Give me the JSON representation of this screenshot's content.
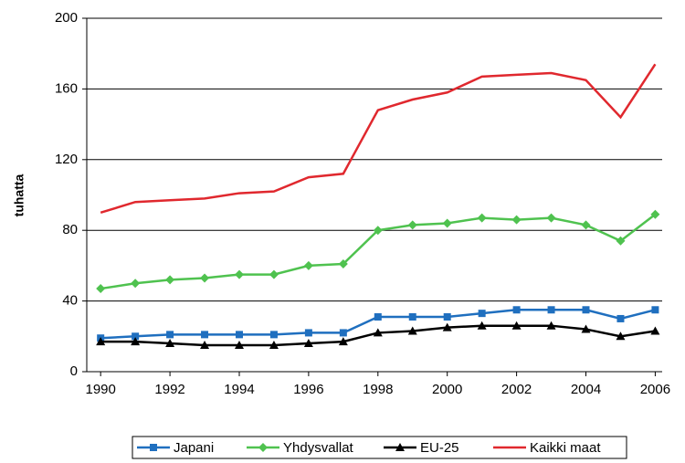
{
  "chart_data": {
    "type": "line",
    "y_label": "tuhatta",
    "x": [
      1990,
      1991,
      1992,
      1993,
      1994,
      1995,
      1996,
      1997,
      1998,
      1999,
      2000,
      2001,
      2002,
      2003,
      2004,
      2005,
      2006
    ],
    "xlim": [
      1989.6,
      2006.2
    ],
    "xticks": [
      1990,
      1992,
      1994,
      1996,
      1998,
      2000,
      2002,
      2004,
      2006
    ],
    "ylim": [
      0,
      200
    ],
    "yticks": [
      0,
      40,
      80,
      120,
      160,
      200
    ],
    "grid": true,
    "legend": "bottom",
    "series": [
      {
        "name": "Japani",
        "color": "#1f6fbf",
        "marker": "square",
        "values": [
          19,
          20,
          21,
          21,
          21,
          21,
          22,
          22,
          31,
          31,
          31,
          33,
          35,
          35,
          35,
          30,
          35
        ]
      },
      {
        "name": "Yhdysvallat",
        "color": "#4fc24f",
        "marker": "diamond",
        "values": [
          47,
          50,
          52,
          53,
          55,
          55,
          60,
          61,
          80,
          83,
          84,
          87,
          86,
          87,
          83,
          74,
          89
        ]
      },
      {
        "name": "EU-25",
        "color": "#000000",
        "marker": "triangle",
        "values": [
          17,
          17,
          16,
          15,
          15,
          15,
          16,
          17,
          22,
          23,
          25,
          26,
          26,
          26,
          24,
          20,
          23
        ]
      },
      {
        "name": "Kaikki maat",
        "color": "#e0282e",
        "marker": "none",
        "values": [
          90,
          96,
          97,
          98,
          101,
          102,
          110,
          112,
          148,
          154,
          158,
          167,
          168,
          169,
          165,
          144,
          174
        ]
      }
    ]
  }
}
